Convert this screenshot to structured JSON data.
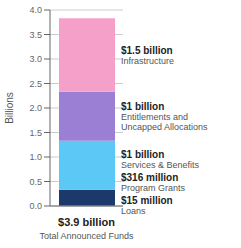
{
  "chart_data": {
    "type": "bar",
    "stacked": true,
    "data_labels": true,
    "categories": [
      "$3.9 billion"
    ],
    "xlabel": "Total Announced Funds",
    "ylabel": "Billions",
    "ylim": [
      0,
      4.0
    ],
    "yticks": [
      {
        "value": 0,
        "label": "0.0"
      },
      0.5,
      {
        "value": 1,
        "label": "1.0"
      },
      1.5,
      {
        "value": 2,
        "label": "2.0"
      },
      2.5,
      {
        "value": 3,
        "label": "3.0"
      },
      3.5,
      {
        "value": 4,
        "label": "4.0"
      }
    ],
    "grid": true,
    "series": [
      {
        "name": "Loans",
        "color": "#e8262a",
        "values": [
          0.015
        ],
        "value_labels": [
          "$15 million"
        ]
      },
      {
        "name": "Program Grants",
        "color": "#1b3a6b",
        "values": [
          0.316
        ],
        "value_labels": [
          "$316 million"
        ]
      },
      {
        "name": "Services & Benefits",
        "color": "#5bc8f5",
        "values": [
          1.0
        ],
        "value_labels": [
          "$1 billion"
        ]
      },
      {
        "name": "Entitlements and\nUncapped Allocations",
        "color": "#9b7fd4",
        "values": [
          1.0
        ],
        "value_labels": [
          "$1 billion"
        ]
      },
      {
        "name": "Infrastructure",
        "color": "#f5a0c8",
        "values": [
          1.5
        ],
        "value_labels": [
          "$1.5 billion"
        ]
      }
    ]
  }
}
